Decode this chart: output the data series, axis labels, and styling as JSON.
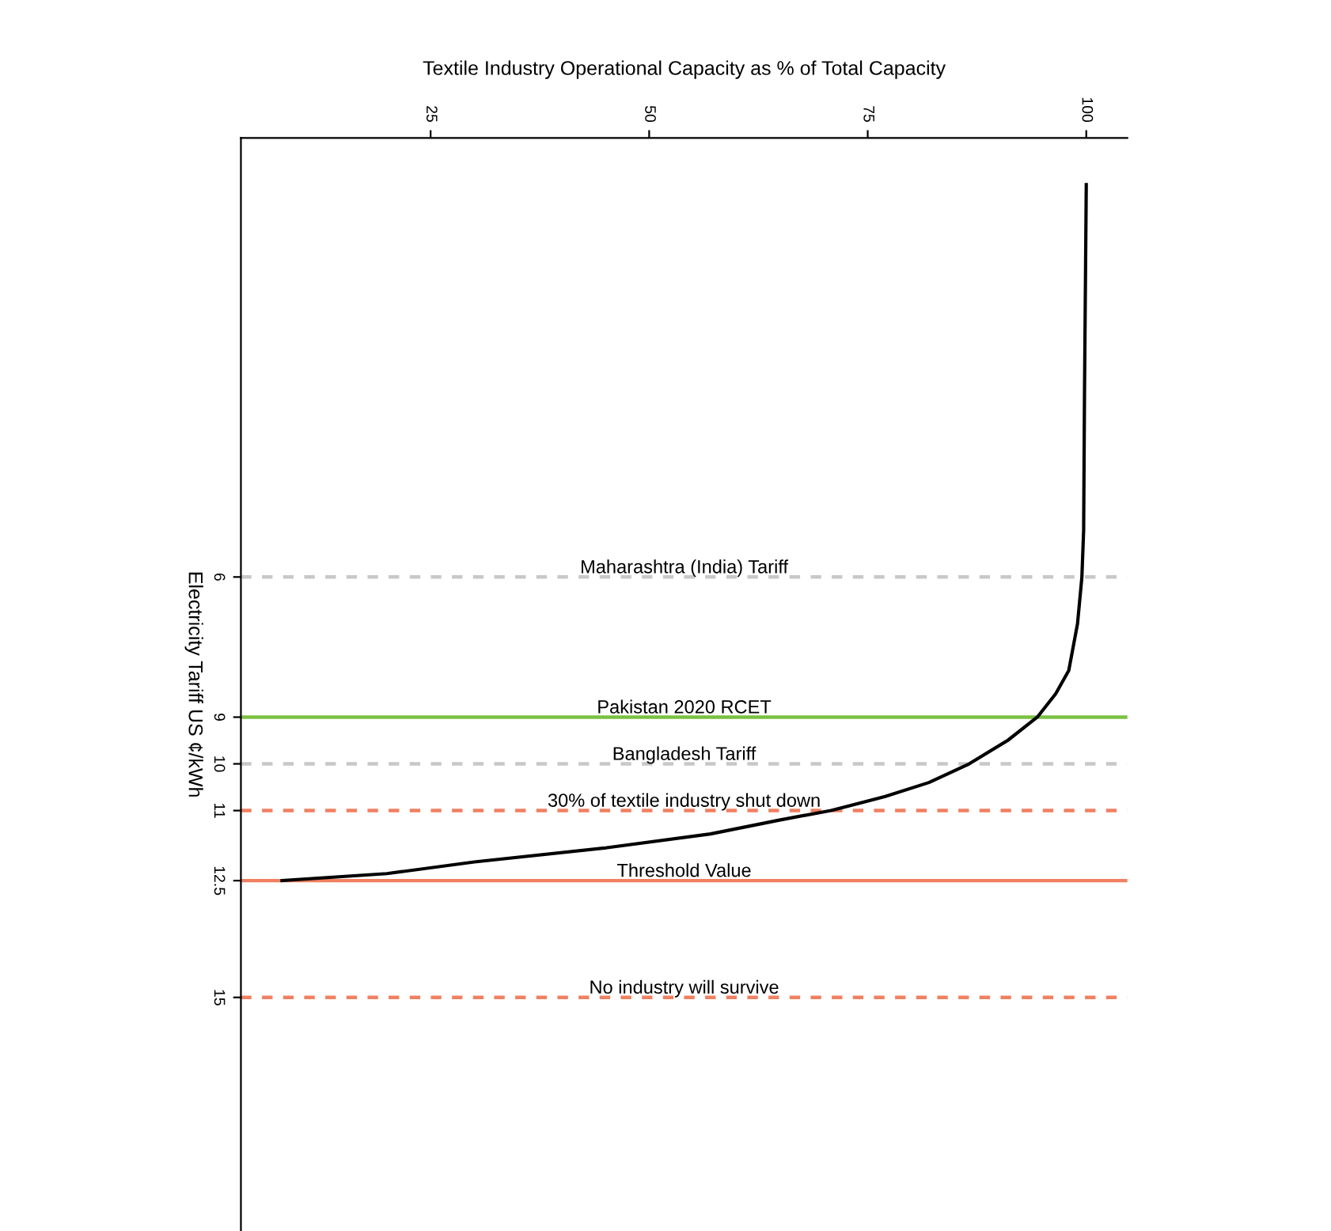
{
  "chart_data": {
    "type": "line",
    "xlabel": "Textile Industry Operational Capacity as % of Total Capacity",
    "ylabel": "Electricity Tariff US ¢/kWh",
    "series": [
      {
        "color": "#000000",
        "x": [
          8,
          20,
          30,
          45,
          57,
          65,
          70.8,
          77,
          82,
          86.6,
          91,
          94.4,
          96.5,
          98,
          99,
          99.5,
          99.7,
          99.8,
          100
        ],
        "values": [
          12.5,
          12.35,
          12.1,
          11.8,
          11.5,
          11.2,
          11,
          10.7,
          10.4,
          10,
          9.5,
          9,
          8.5,
          8,
          7,
          6,
          5,
          2,
          -2.4
        ]
      }
    ],
    "xlim": [
      3.3,
      104.7
    ],
    "ylim": [
      20,
      -3.4
    ],
    "xticks": [
      25,
      50,
      75,
      100
    ],
    "yticks": [
      6,
      9,
      10,
      11,
      12.5,
      15
    ],
    "ref_lines": [
      {
        "axis": "y",
        "value": 6,
        "label": "Maharashtra (India) Tariff",
        "color": "#c8c8c8",
        "line_style": "dashed"
      },
      {
        "axis": "y",
        "value": 9,
        "label": "Pakistan 2020 RCET",
        "color": "#7ac143",
        "line_style": "solid"
      },
      {
        "axis": "y",
        "value": 10,
        "label": "Bangladesh Tariff",
        "color": "#c8c8c8",
        "line_style": "dashed"
      },
      {
        "axis": "y",
        "value": 11,
        "label": "30% of textile industry shut down",
        "color": "#f08060",
        "line_style": "dashed"
      },
      {
        "axis": "y",
        "value": 12.5,
        "label": "Threshold Value",
        "color": "#f08060",
        "line_style": "solid"
      },
      {
        "axis": "y",
        "value": 15,
        "label": "No industry will survive",
        "color": "#f08060",
        "line_style": "dashed"
      }
    ],
    "grid": false,
    "legend": false,
    "marker": "none",
    "line_style": "solid"
  }
}
